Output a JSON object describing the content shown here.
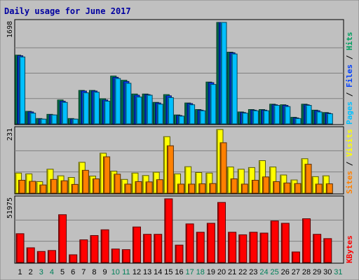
{
  "chart_data": {
    "type": "bar",
    "title": "Daily usage for June 2017",
    "categories": [
      "1",
      "2",
      "3",
      "4",
      "5",
      "6",
      "7",
      "8",
      "9",
      "10",
      "11",
      "12",
      "13",
      "14",
      "15",
      "16",
      "17",
      "18",
      "19",
      "20",
      "21",
      "22",
      "23",
      "24",
      "25",
      "26",
      "27",
      "28",
      "29",
      "30",
      "31"
    ],
    "weekend_days": [
      "3",
      "4",
      "10",
      "11",
      "17",
      "18",
      "24",
      "25",
      "31"
    ],
    "panels": [
      {
        "id": "hits",
        "max_label": "1698",
        "ylim": [
          0,
          1698
        ],
        "series": [
          {
            "name": "Hits",
            "color": "#00a060",
            "values": [
              1150,
              210,
              90,
              160,
              400,
              90,
              560,
              560,
              420,
              800,
              730,
              500,
              500,
              360,
              490,
              150,
              350,
              240,
              700,
              1698,
              1200,
              200,
              240,
              240,
              330,
              320,
              110,
              330,
              230,
              190,
              null
            ]
          },
          {
            "name": "Files",
            "color": "#0040ff",
            "values": [
              1140,
              200,
              80,
              150,
              380,
              80,
              550,
              550,
              400,
              780,
              710,
              480,
              490,
              350,
              470,
              140,
              340,
              230,
              690,
              1698,
              1190,
              190,
              230,
              230,
              320,
              310,
              100,
              320,
              220,
              180,
              null
            ]
          },
          {
            "name": "Pages",
            "color": "#00c0ff",
            "values": [
              1120,
              180,
              80,
              150,
              360,
              80,
              520,
              530,
              380,
              760,
              680,
              450,
              480,
              330,
              440,
              130,
              320,
              220,
              660,
              1698,
              1170,
              180,
              220,
              220,
              310,
              290,
              90,
              310,
              200,
              170,
              null
            ]
          }
        ],
        "legend": [
          "Pages",
          "Files",
          "Hits"
        ]
      },
      {
        "id": "visits",
        "max_label": "231",
        "ylim": [
          0,
          231
        ],
        "series": [
          {
            "name": "Visits",
            "color": "#ffff00",
            "values": [
              73,
              70,
              42,
              87,
              63,
              57,
              112,
              62,
              145,
              80,
              50,
              73,
              64,
              76,
              205,
              70,
              96,
              75,
              73,
              231,
              95,
              87,
              93,
              118,
              95,
              66,
              48,
              125,
              60,
              63,
              null
            ]
          },
          {
            "name": "Sites",
            "color": "#ff8000",
            "values": [
              47,
              43,
              30,
              50,
              45,
              32,
              83,
              52,
              132,
              69,
              33,
              42,
              41,
              49,
              172,
              33,
              33,
              34,
              35,
              183,
              52,
              33,
              47,
              59,
              42,
              37,
              35,
              105,
              33,
              34,
              null
            ]
          }
        ],
        "legend": [
          "Sites",
          "Visits"
        ]
      },
      {
        "id": "kbytes",
        "max_label": "51975",
        "ylim": [
          0,
          51975
        ],
        "series": [
          {
            "name": "KBytes",
            "color": "#ff0000",
            "values": [
              23500,
              12000,
              9000,
              9800,
              39000,
              6300,
              18500,
              22000,
              26700,
              11000,
              10500,
              29000,
              23000,
              23000,
              51975,
              14200,
              31500,
              24700,
              32000,
              49000,
              24700,
              22600,
              24700,
              24000,
              33900,
              32000,
              8600,
              35700,
              23000,
              19500,
              null
            ]
          }
        ],
        "legend": [
          "KBytes"
        ]
      }
    ]
  }
}
